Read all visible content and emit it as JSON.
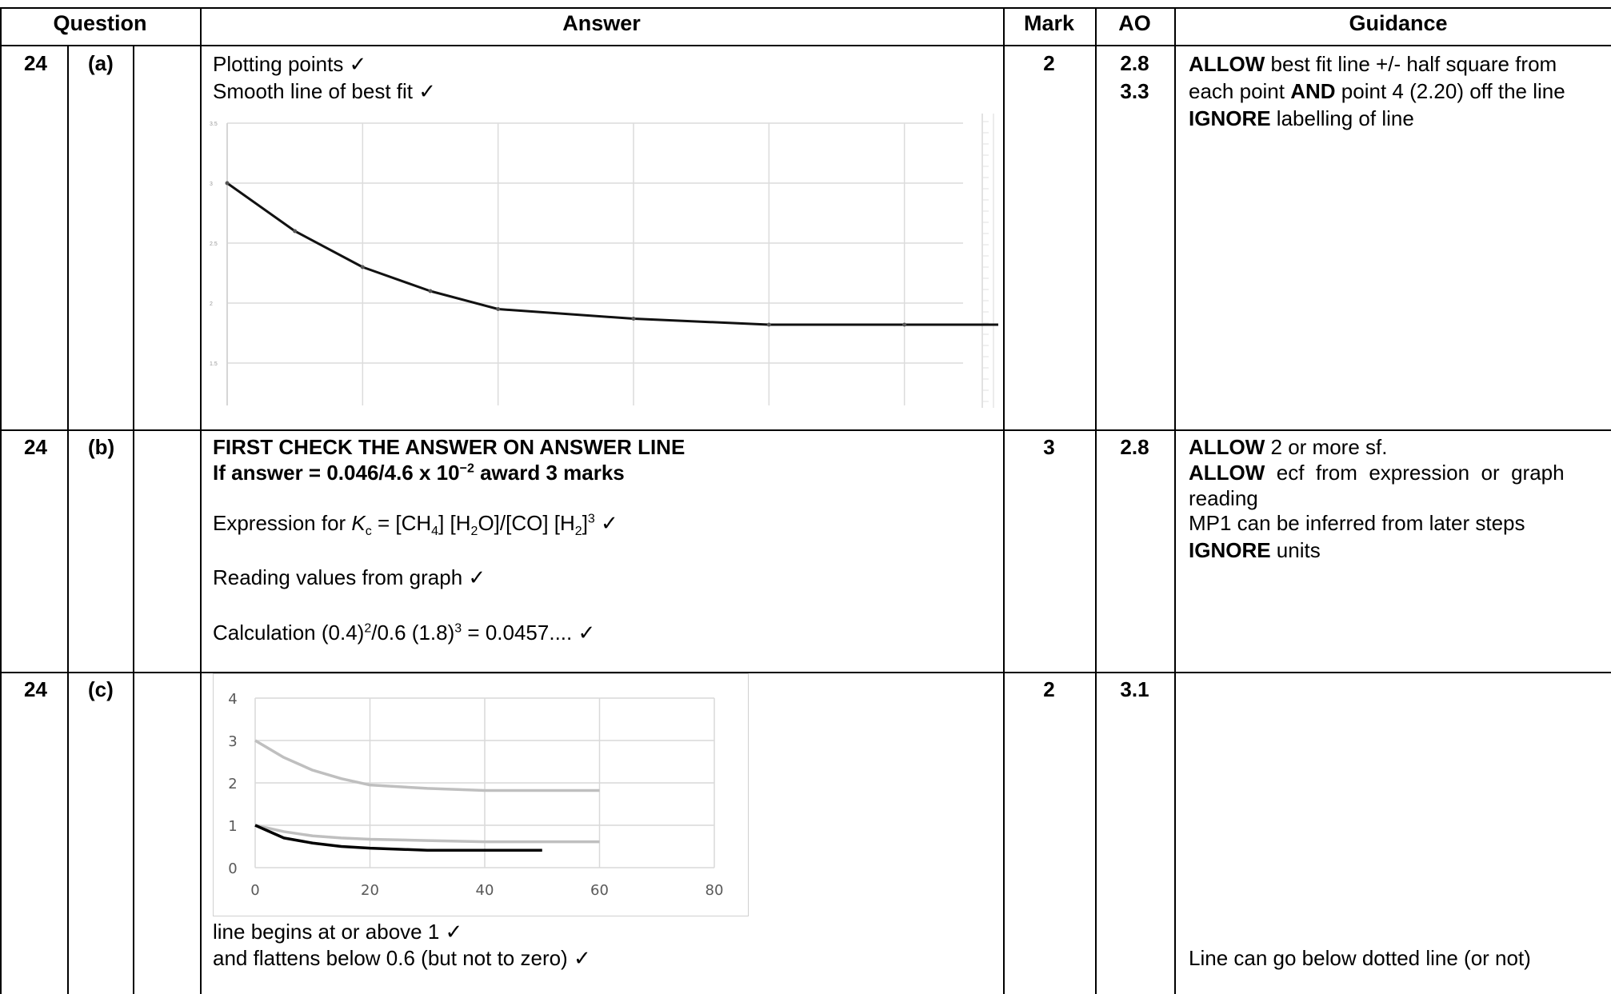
{
  "header": {
    "question": "Question",
    "answer": "Answer",
    "mark": "Mark",
    "ao": "AO",
    "guidance": "Guidance"
  },
  "rows": [
    {
      "q": "24",
      "part": "(a)",
      "answer_lines": [
        "Plotting points ✓",
        "Smooth line of best fit ✓"
      ],
      "mark": "2",
      "ao": [
        "2.8",
        "3.3"
      ],
      "guidance": {
        "l1_bold": "ALLOW",
        "l1_rest": " best fit line +/- half square from",
        "l2_a": "each point ",
        "l2_bold": "AND",
        "l2_rest": " point 4 (2.20) off the line",
        "l3_bold": "IGNORE",
        "l3_rest": " labelling of line"
      }
    },
    {
      "q": "24",
      "part": "(b)",
      "answer_bold_1": "FIRST CHECK THE ANSWER ON ANSWER LINE",
      "answer_bold_2a": "If answer = 0.046/4.6 x 10",
      "answer_bold_2sup": "−2",
      "answer_bold_2b": "  award 3 marks",
      "expr_a": "Expression for ",
      "expr_k": "K",
      "expr_ksub": "c",
      "expr_b": " = [CH",
      "expr_sub4": "4",
      "expr_c": "] [H",
      "expr_sub2a": "2",
      "expr_d": "O]/[CO] [H",
      "expr_sub2b": "2",
      "expr_e": "]",
      "expr_sup3": "3",
      "expr_f": "  ✓",
      "reading": "Reading values from graph ✓",
      "calc_a": "Calculation (0.4)",
      "calc_sup2": "2",
      "calc_b": "/0.6 (1.8)",
      "calc_sup3": "3",
      "calc_c": " = 0.0457.... ✓",
      "mark": "3",
      "ao": "2.8",
      "guidance": {
        "l1_bold": "ALLOW",
        "l1_rest": " 2 or more sf.",
        "l2_bold": "ALLOW",
        "l2_rest": "  ecf  from  expression  or  graph",
        "l3": "reading",
        "l4": "MP1 can be inferred from later steps",
        "l5_bold": "IGNORE",
        "l5_rest": " units"
      }
    },
    {
      "q": "24",
      "part": "(c)",
      "answer_lines": [
        "line begins at or above 1 ✓",
        "and flattens below 0.6 (but not to zero) ✓"
      ],
      "mark": "2",
      "ao": "3.1",
      "guidance": "Line can go below dotted line (or not)"
    }
  ],
  "chart_data": [
    {
      "type": "line",
      "y_tick_labels": [
        "3.5",
        "3",
        "2.5",
        "2",
        "1.5"
      ],
      "ylim": [
        1.5,
        3.5
      ],
      "x_positions": [
        0,
        1,
        2,
        3,
        4,
        5,
        6,
        7,
        8,
        9,
        10,
        11,
        12
      ],
      "series": [
        {
          "x": [
            0,
            1,
            2,
            3,
            4,
            6,
            8,
            10,
            12
          ],
          "y": [
            3.0,
            2.6,
            2.3,
            2.1,
            1.95,
            1.87,
            1.82,
            1.82,
            1.82
          ],
          "color": "#111111"
        }
      ],
      "grid": true
    },
    {
      "type": "line",
      "x_tick_labels": [
        "0",
        "20",
        "40",
        "60",
        "80"
      ],
      "y_tick_labels": [
        "0",
        "1",
        "2",
        "3",
        "4"
      ],
      "xlim": [
        0,
        80
      ],
      "ylim": [
        0,
        4
      ],
      "series": [
        {
          "x": [
            0,
            5,
            10,
            15,
            20,
            30,
            40,
            50,
            60
          ],
          "y": [
            3.0,
            2.6,
            2.3,
            2.1,
            1.95,
            1.87,
            1.82,
            1.82,
            1.82
          ],
          "color": "#bfbfbf"
        },
        {
          "x": [
            0,
            5,
            10,
            15,
            20,
            30,
            40,
            50,
            60
          ],
          "y": [
            1.0,
            0.85,
            0.75,
            0.7,
            0.67,
            0.64,
            0.61,
            0.61,
            0.61
          ],
          "color": "#bfbfbf"
        },
        {
          "x": [
            0,
            5,
            10,
            15,
            20,
            30,
            40,
            50
          ],
          "y": [
            1.0,
            0.7,
            0.58,
            0.5,
            0.46,
            0.41,
            0.41,
            0.41
          ],
          "color": "#000000"
        }
      ],
      "grid": true
    }
  ]
}
